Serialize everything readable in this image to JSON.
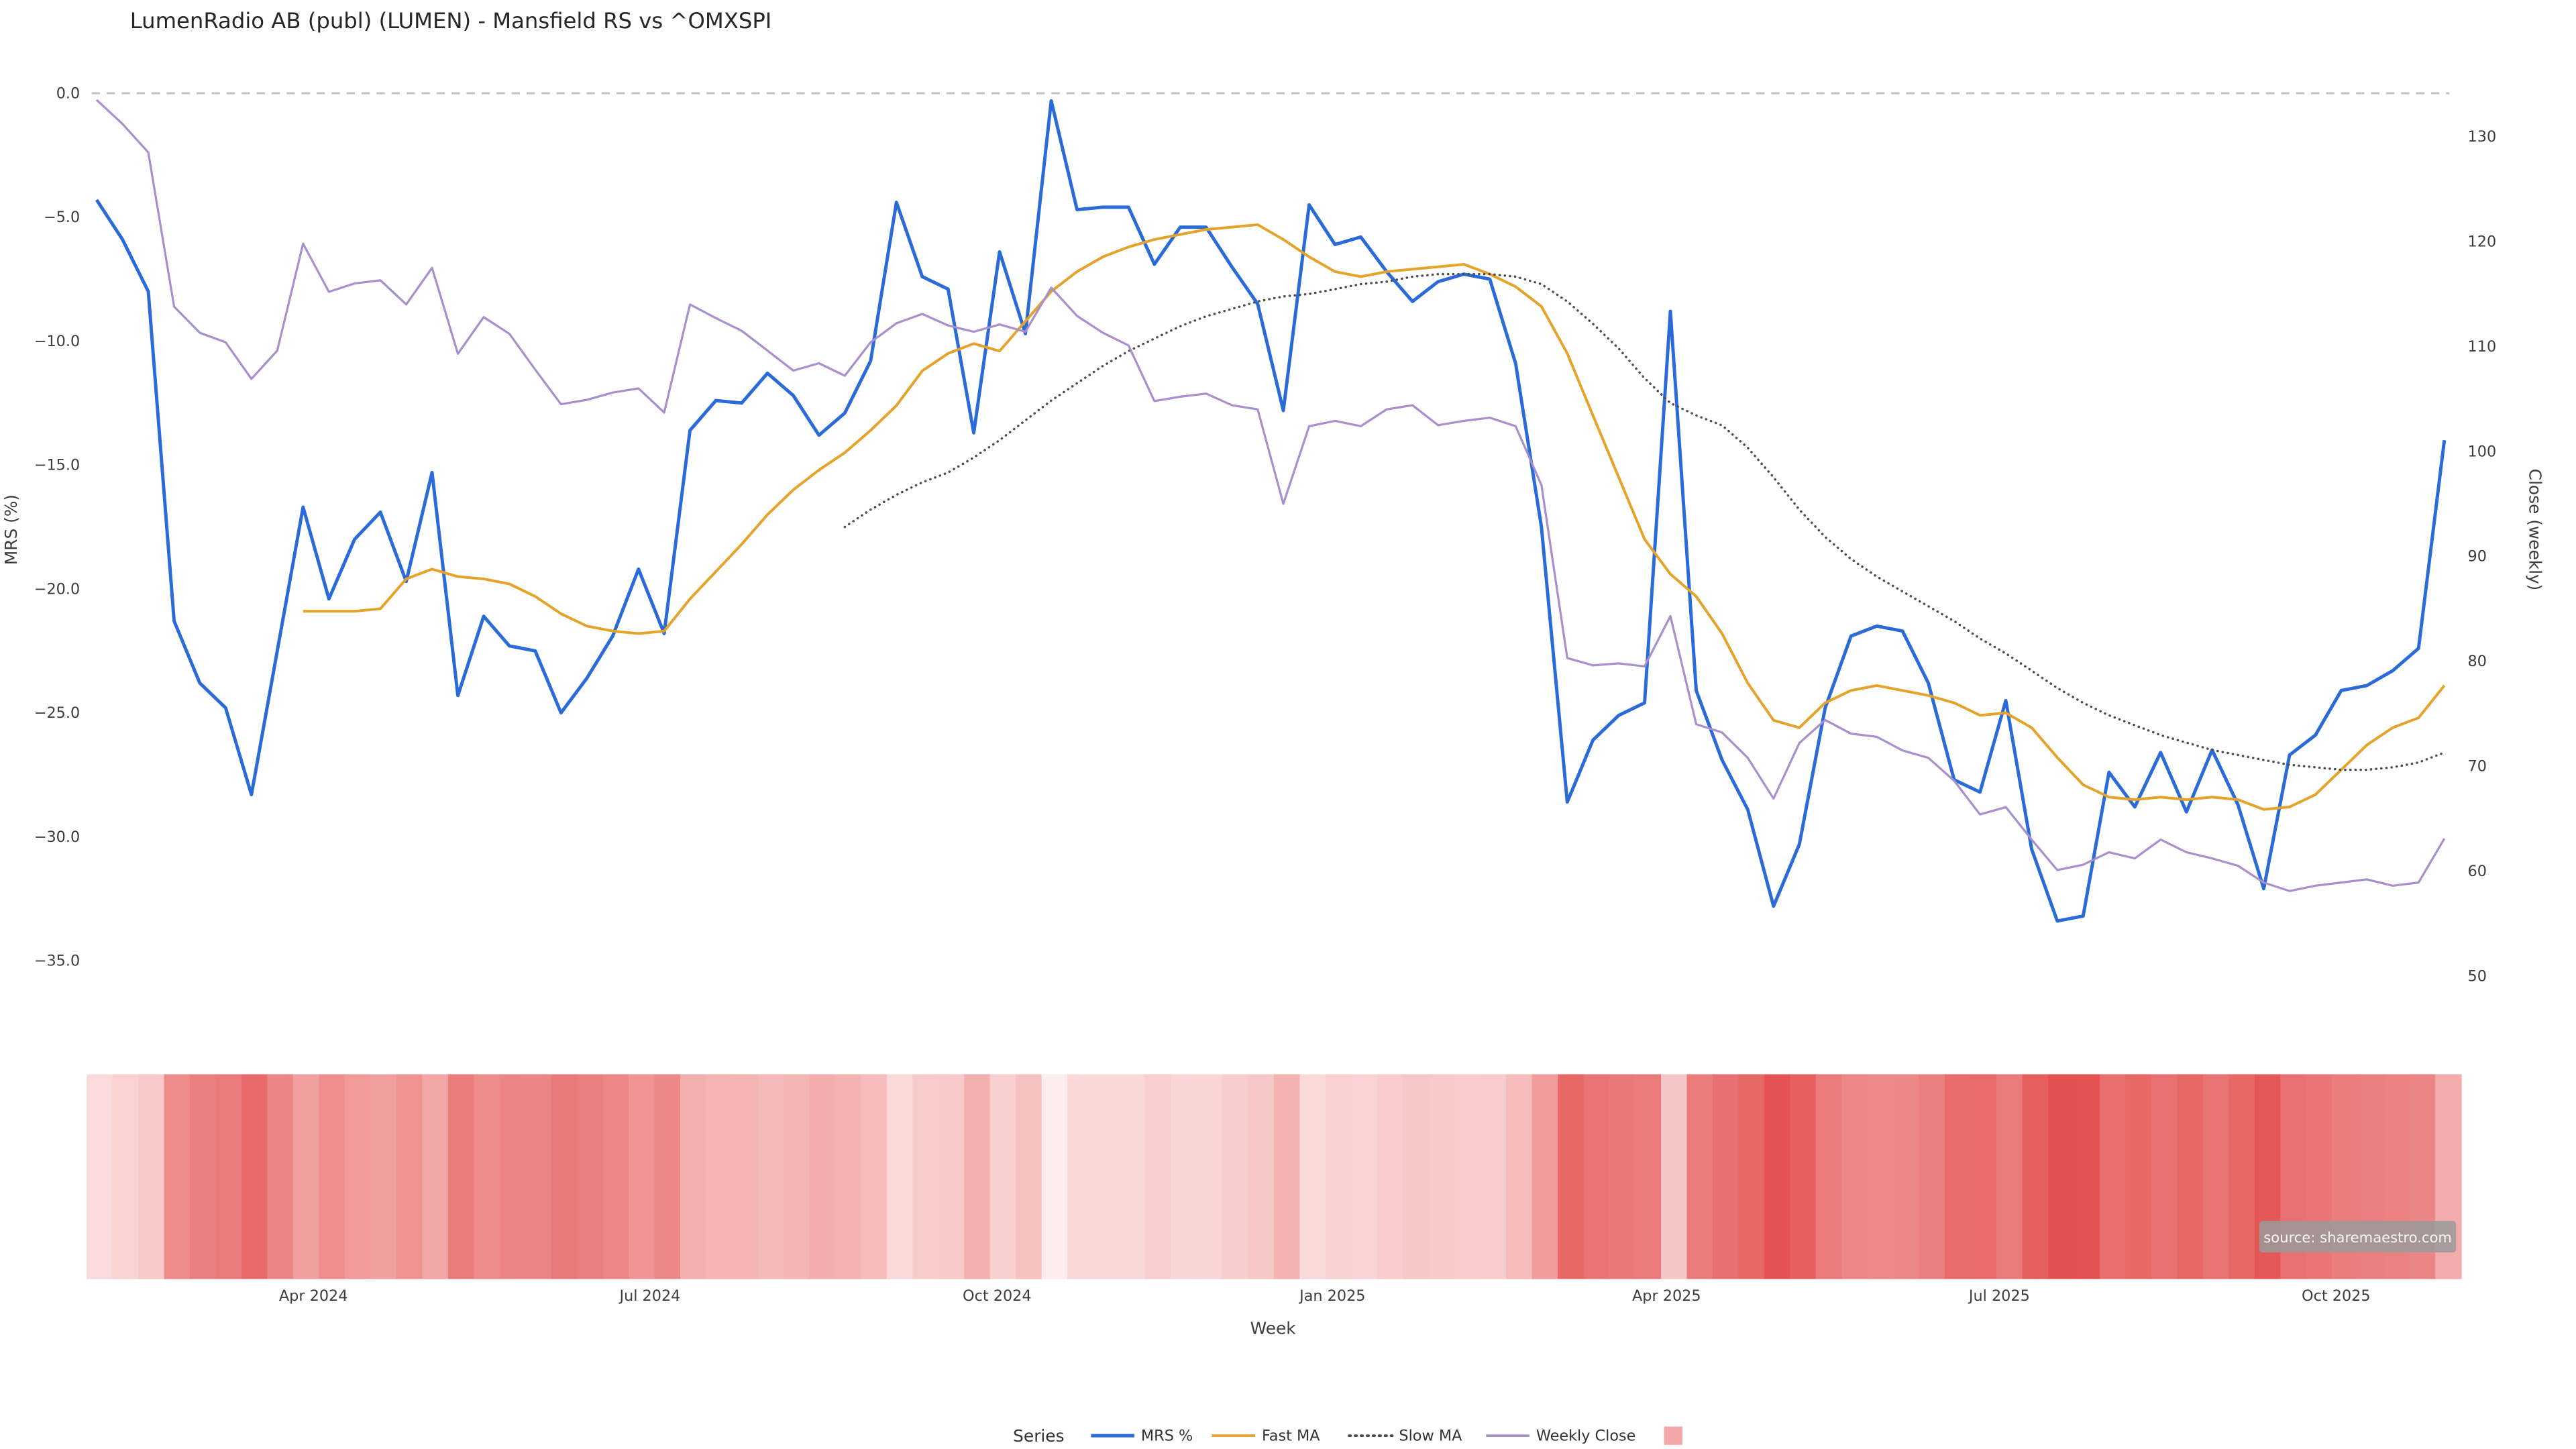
{
  "page": {
    "source_note": "source: sharemaestro.com"
  },
  "chart_data": {
    "type": "line",
    "title": "LumenRadio AB (publ) (LUMEN) - Mansfield RS vs ^OMXSPI",
    "xlabel": "Week",
    "ylabel_left": "MRS (%)",
    "ylabel_right": "Close (weekly)",
    "grid": "off",
    "zero_reference_line": 0.0,
    "colors": {
      "zero_line": "#c2c2c2",
      "tick_text": "#3d3d3d",
      "title_text": "#262626",
      "source_badge_bg": "#9a9a9a",
      "source_badge_text": "#f5f5f5"
    },
    "left_axis": {
      "label": "MRS (%)",
      "ticks": [
        0,
        -5,
        -10,
        -15,
        -20,
        -25,
        -30,
        -35
      ],
      "tick_labels": [
        "0.0",
        "−5.0",
        "−10.0",
        "−15.0",
        "−20.0",
        "−25.0",
        "−30.0",
        "−35.0"
      ],
      "range": [
        -36.6,
        0.8
      ]
    },
    "right_axis": {
      "label": "Close (weekly)",
      "ticks": [
        130,
        120,
        110,
        100,
        90,
        80,
        70,
        60,
        50
      ],
      "tick_labels": [
        "130",
        "120",
        "110",
        "100",
        "90",
        "80",
        "70",
        "60",
        "50"
      ],
      "range": [
        47.8,
        135.9
      ]
    },
    "x_axis": {
      "label": "Week",
      "tick_labels": [
        "Apr 2024",
        "Jul 2024",
        "Oct 2024",
        "Jan 2025",
        "Apr 2025",
        "Jul 2025",
        "Oct 2025"
      ],
      "tick_positions": [
        8.4,
        21.45,
        34.9,
        47.9,
        60.85,
        73.75,
        86.8
      ],
      "unit": "week",
      "n_weeks": 92
    },
    "series": [
      {
        "id": "mrs-pct",
        "name": "MRS %",
        "axis": "left",
        "color": "#2b6bd9",
        "style": "solid",
        "width": 2.0,
        "values": [
          -4.3,
          -5.9,
          -8.0,
          -21.3,
          -23.8,
          -24.8,
          -28.3,
          -22.5,
          -16.7,
          -20.4,
          -18.0,
          -16.9,
          -19.7,
          -15.3,
          -24.3,
          -21.1,
          -22.3,
          -22.5,
          -25.0,
          -23.6,
          -21.9,
          -19.2,
          -21.8,
          -13.6,
          -12.4,
          -12.5,
          -11.3,
          -12.2,
          -13.8,
          -12.9,
          -10.8,
          -4.4,
          -7.4,
          -7.9,
          -13.7,
          -6.4,
          -9.7,
          -0.3,
          -4.7,
          -4.6,
          -4.6,
          -6.9,
          -5.4,
          -5.4,
          -7.0,
          -8.5,
          -12.8,
          -4.5,
          -6.1,
          -5.8,
          -7.2,
          -8.4,
          -7.6,
          -7.3,
          -7.5,
          -10.9,
          -17.5,
          -28.6,
          -26.1,
          -25.1,
          -24.6,
          -8.8,
          -24.1,
          -26.9,
          -28.9,
          -32.8,
          -30.3,
          -24.8,
          -21.9,
          -21.5,
          -21.7,
          -23.8,
          -27.7,
          -28.2,
          -24.5,
          -30.5,
          -33.4,
          -33.2,
          -27.4,
          -28.8,
          -26.6,
          -29.0,
          -26.5,
          -28.7,
          -32.1,
          -26.7,
          -25.9,
          -24.1,
          -23.9,
          -23.3,
          -22.4,
          -14.0
        ]
      },
      {
        "id": "fast-ma",
        "name": "Fast MA",
        "axis": "left",
        "color": "#e5a32b",
        "style": "solid",
        "width": 1.6,
        "values": [
          null,
          null,
          null,
          null,
          null,
          null,
          null,
          null,
          -20.9,
          -20.9,
          -20.9,
          -20.8,
          -19.6,
          -19.2,
          -19.5,
          -19.6,
          -19.8,
          -20.3,
          -21.0,
          -21.5,
          -21.7,
          -21.8,
          -21.7,
          -20.4,
          -19.3,
          -18.2,
          -17.0,
          -16.0,
          -15.2,
          -14.5,
          -13.6,
          -12.6,
          -11.2,
          -10.5,
          -10.1,
          -10.4,
          -9.2,
          -8.0,
          -7.2,
          -6.6,
          -6.2,
          -5.9,
          -5.7,
          -5.5,
          -5.4,
          -5.3,
          -5.9,
          -6.6,
          -7.2,
          -7.4,
          -7.2,
          -7.1,
          -7.0,
          -6.9,
          -7.3,
          -7.8,
          -8.6,
          -10.5,
          -13.0,
          -15.5,
          -18.0,
          -19.4,
          -20.3,
          -21.8,
          -23.8,
          -25.3,
          -25.6,
          -24.6,
          -24.1,
          -23.9,
          -24.1,
          -24.3,
          -24.6,
          -25.1,
          -25.0,
          -25.6,
          -26.8,
          -27.9,
          -28.4,
          -28.5,
          -28.4,
          -28.5,
          -28.4,
          -28.5,
          -28.9,
          -28.8,
          -28.3,
          -27.3,
          -26.3,
          -25.6,
          -25.2,
          -23.9
        ]
      },
      {
        "id": "slow-ma",
        "name": "Slow MA",
        "axis": "left",
        "color": "#4d4d4d",
        "style": "dotted",
        "width": 1.4,
        "values": [
          null,
          null,
          null,
          null,
          null,
          null,
          null,
          null,
          null,
          null,
          null,
          null,
          null,
          null,
          null,
          null,
          null,
          null,
          null,
          null,
          null,
          null,
          null,
          null,
          null,
          null,
          null,
          null,
          null,
          -17.5,
          -16.8,
          -16.2,
          -15.7,
          -15.3,
          -14.7,
          -14.0,
          -13.2,
          -12.4,
          -11.7,
          -11.0,
          -10.4,
          -9.9,
          -9.4,
          -9.0,
          -8.7,
          -8.4,
          -8.2,
          -8.1,
          -7.9,
          -7.7,
          -7.6,
          -7.4,
          -7.3,
          -7.3,
          -7.3,
          -7.4,
          -7.7,
          -8.4,
          -9.3,
          -10.3,
          -11.5,
          -12.5,
          -13.0,
          -13.4,
          -14.3,
          -15.5,
          -16.8,
          -17.9,
          -18.8,
          -19.5,
          -20.1,
          -20.7,
          -21.3,
          -22.0,
          -22.6,
          -23.3,
          -24.0,
          -24.6,
          -25.1,
          -25.5,
          -25.9,
          -26.2,
          -26.5,
          -26.7,
          -26.9,
          -27.1,
          -27.2,
          -27.3,
          -27.3,
          -27.2,
          -27.0,
          -26.6
        ]
      },
      {
        "id": "weekly-close",
        "name": "Weekly Close",
        "axis": "right",
        "color": "#a98fcb",
        "style": "solid",
        "width": 1.3,
        "values": [
          133.5,
          131.2,
          128.5,
          113.8,
          111.3,
          110.4,
          106.9,
          109.6,
          119.8,
          115.2,
          116.0,
          116.3,
          114.0,
          117.5,
          109.3,
          112.8,
          111.2,
          107.8,
          104.5,
          104.9,
          105.6,
          106.0,
          103.7,
          114.0,
          112.7,
          111.5,
          109.6,
          107.7,
          108.4,
          107.2,
          110.4,
          112.2,
          113.1,
          112.0,
          111.4,
          112.1,
          111.4,
          115.6,
          112.9,
          111.3,
          110.1,
          104.8,
          105.2,
          105.5,
          104.4,
          104.0,
          95.0,
          102.4,
          102.9,
          102.4,
          104.0,
          104.4,
          102.5,
          102.9,
          103.2,
          102.4,
          96.8,
          80.3,
          79.6,
          79.8,
          79.5,
          84.3,
          74.0,
          73.2,
          70.8,
          66.9,
          72.2,
          74.4,
          73.1,
          72.8,
          71.5,
          70.8,
          68.6,
          65.4,
          66.1,
          63.0,
          60.1,
          60.6,
          61.8,
          61.2,
          63.0,
          61.8,
          61.2,
          60.5,
          58.9,
          58.1,
          58.6,
          58.9,
          59.2,
          58.6,
          58.9,
          63.1
        ]
      }
    ],
    "heatmap": {
      "description": "weekly relative-strength intensity strip, derived from MRS % magnitude",
      "derived_from": "mrs-pct",
      "scale_domain": [
        0,
        -35
      ],
      "color_low": "#fdeeee",
      "color_high": "#e34a4a"
    },
    "legend": {
      "title": "Series",
      "position": "bottom-center",
      "items": [
        {
          "id": "mrs-pct",
          "type": "line",
          "label": "MRS %",
          "color": "#2b6bd9",
          "style": "solid"
        },
        {
          "id": "fast-ma",
          "type": "line",
          "label": "Fast MA",
          "color": "#e5a32b",
          "style": "solid"
        },
        {
          "id": "slow-ma",
          "type": "line",
          "label": "Slow MA",
          "color": "#4d4d4d",
          "style": "dotted"
        },
        {
          "id": "weekly-close",
          "type": "line",
          "label": "Weekly Close",
          "color": "#a98fcb",
          "style": "solid"
        },
        {
          "id": "heatmap",
          "type": "patch",
          "label": "",
          "color": "#f2a8a8"
        }
      ]
    }
  }
}
